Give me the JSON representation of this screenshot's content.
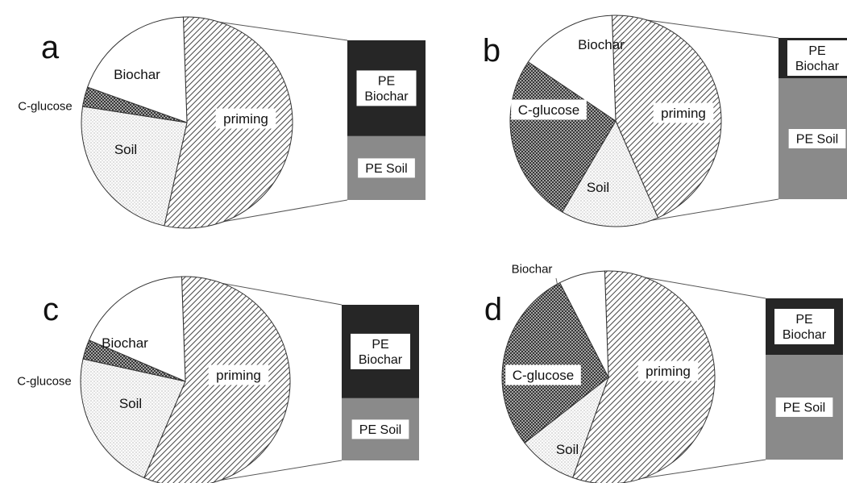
{
  "colors": {
    "pe_biochar": "#262626",
    "pe_soil": "#8a8a8a",
    "outline": "#333333",
    "label_box": "#ffffff"
  },
  "chart_data": [
    {
      "type": "pie",
      "panel_label": "a",
      "slices": [
        {
          "label": "priming",
          "value": 54,
          "pattern": "hatch-diagonal"
        },
        {
          "label": "Soil",
          "value": 24,
          "pattern": "dots-light"
        },
        {
          "label": "C-glucose",
          "value": 3,
          "pattern": "crosshatch"
        },
        {
          "label": "Biochar",
          "value": 19,
          "pattern": "blank"
        }
      ],
      "breakdown_of": "priming",
      "stacked_bar": [
        {
          "label": "PE Soil",
          "value": 40
        },
        {
          "label": "PE Biochar",
          "value": 60
        }
      ]
    },
    {
      "type": "pie",
      "panel_label": "b",
      "slices": [
        {
          "label": "priming",
          "value": 44,
          "pattern": "hatch-diagonal"
        },
        {
          "label": "Soil",
          "value": 15,
          "pattern": "dots-light"
        },
        {
          "label": "C-glucose",
          "value": 26,
          "pattern": "crosshatch"
        },
        {
          "label": "Biochar",
          "value": 15,
          "pattern": "blank"
        }
      ],
      "breakdown_of": "priming",
      "stacked_bar": [
        {
          "label": "PE Soil",
          "value": 75
        },
        {
          "label": "PE Biochar",
          "value": 25
        }
      ]
    },
    {
      "type": "pie",
      "panel_label": "c",
      "slices": [
        {
          "label": "priming",
          "value": 57,
          "pattern": "hatch-diagonal"
        },
        {
          "label": "Soil",
          "value": 22,
          "pattern": "dots-light"
        },
        {
          "label": "C-glucose",
          "value": 3,
          "pattern": "crosshatch"
        },
        {
          "label": "Biochar",
          "value": 18,
          "pattern": "blank"
        }
      ],
      "breakdown_of": "priming",
      "stacked_bar": [
        {
          "label": "PE Soil",
          "value": 40
        },
        {
          "label": "PE Biochar",
          "value": 60
        }
      ]
    },
    {
      "type": "pie",
      "panel_label": "d",
      "slices": [
        {
          "label": "priming",
          "value": 56,
          "pattern": "hatch-diagonal"
        },
        {
          "label": "Soil",
          "value": 9,
          "pattern": "dots-light"
        },
        {
          "label": "C-glucose",
          "value": 28,
          "pattern": "crosshatch"
        },
        {
          "label": "Biochar",
          "value": 7,
          "pattern": "blank"
        }
      ],
      "breakdown_of": "priming",
      "stacked_bar": [
        {
          "label": "PE Soil",
          "value": 65
        },
        {
          "label": "PE Biochar",
          "value": 35
        }
      ]
    }
  ]
}
